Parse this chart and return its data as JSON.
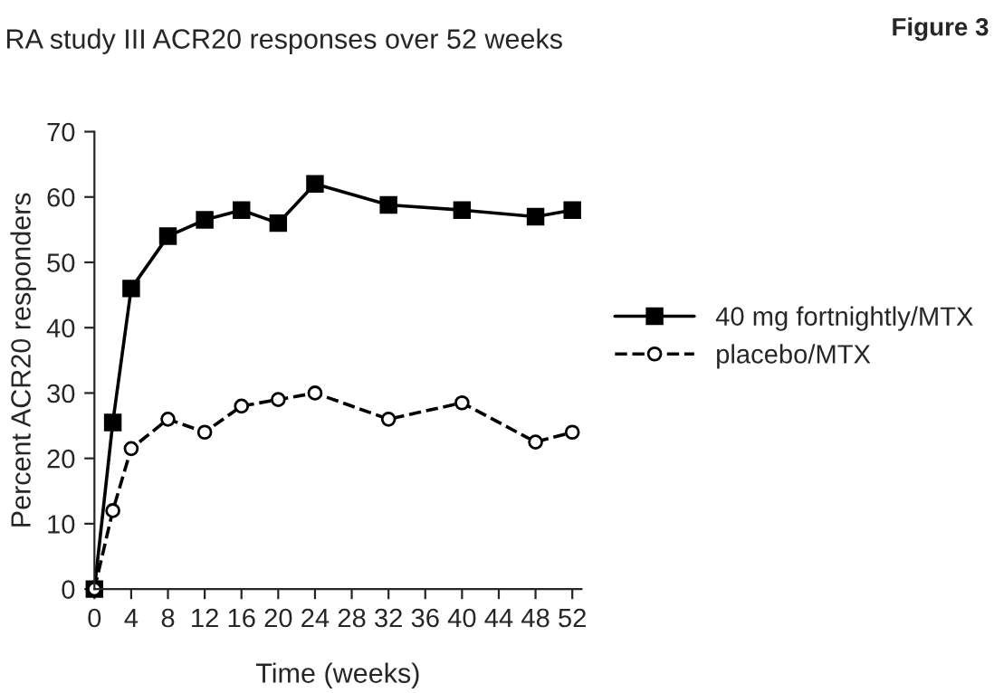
{
  "chart_data": {
    "type": "line",
    "title": "RA study III ACR20 responses over 52 weeks",
    "annotations": [
      "Figure 3"
    ],
    "xlabel": "Time (weeks)",
    "ylabel": "Percent ACR20 responders",
    "x": [
      0,
      2,
      4,
      8,
      12,
      16,
      20,
      24,
      32,
      40,
      48,
      52
    ],
    "series": [
      {
        "name": "40 mg fortnightly/MTX",
        "color": "#000000",
        "marker": "square",
        "line_style": "solid",
        "values": [
          0,
          25.5,
          46,
          54,
          56.5,
          58,
          56,
          62,
          58.8,
          58,
          57,
          58
        ]
      },
      {
        "name": "placebo/MTX",
        "color": "#000000",
        "marker": "circle",
        "line_style": "dashed",
        "values": [
          0,
          12,
          21.5,
          26,
          24,
          28,
          29,
          30,
          26,
          28.5,
          22.5,
          24
        ]
      }
    ],
    "xlim": [
      0,
      53
    ],
    "xticks": [
      0,
      4,
      8,
      12,
      16,
      20,
      24,
      28,
      32,
      36,
      40,
      44,
      48,
      52
    ],
    "ylim": [
      0,
      70
    ],
    "yticks": [
      0,
      10,
      20,
      30,
      40,
      50,
      60,
      70
    ],
    "grid": false,
    "legend": "right"
  }
}
